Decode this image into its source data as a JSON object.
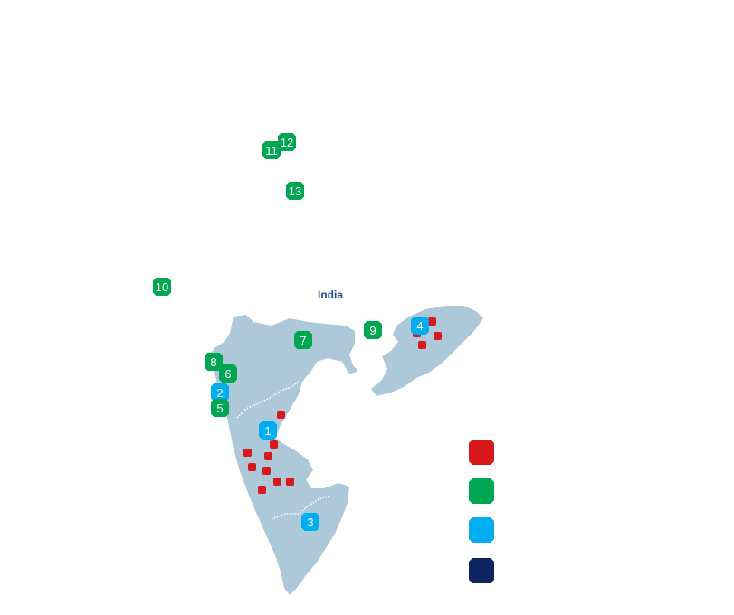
{
  "map": {
    "country_label": "India",
    "land_color": "#adc8d8",
    "border_color": "#ffffff"
  },
  "colors": {
    "red": "#d7191c",
    "green": "#00a651",
    "blue": "#00aeef",
    "navy": "#0c2461"
  },
  "markers": [
    {
      "label": "1",
      "color": "blue"
    },
    {
      "label": "2",
      "color": "blue"
    },
    {
      "label": "3",
      "color": "blue"
    },
    {
      "label": "4",
      "color": "blue"
    },
    {
      "label": "5",
      "color": "green"
    },
    {
      "label": "6",
      "color": "green"
    },
    {
      "label": "7",
      "color": "green"
    },
    {
      "label": "8",
      "color": "green"
    },
    {
      "label": "9",
      "color": "green"
    },
    {
      "label": "10",
      "color": "green"
    },
    {
      "label": "11",
      "color": "green"
    },
    {
      "label": "12",
      "color": "green"
    },
    {
      "label": "13",
      "color": "green"
    }
  ],
  "legend": [
    {
      "color": "red",
      "label": ""
    },
    {
      "color": "green",
      "label": ""
    },
    {
      "color": "blue",
      "label": ""
    },
    {
      "color": "navy",
      "label": ""
    }
  ]
}
